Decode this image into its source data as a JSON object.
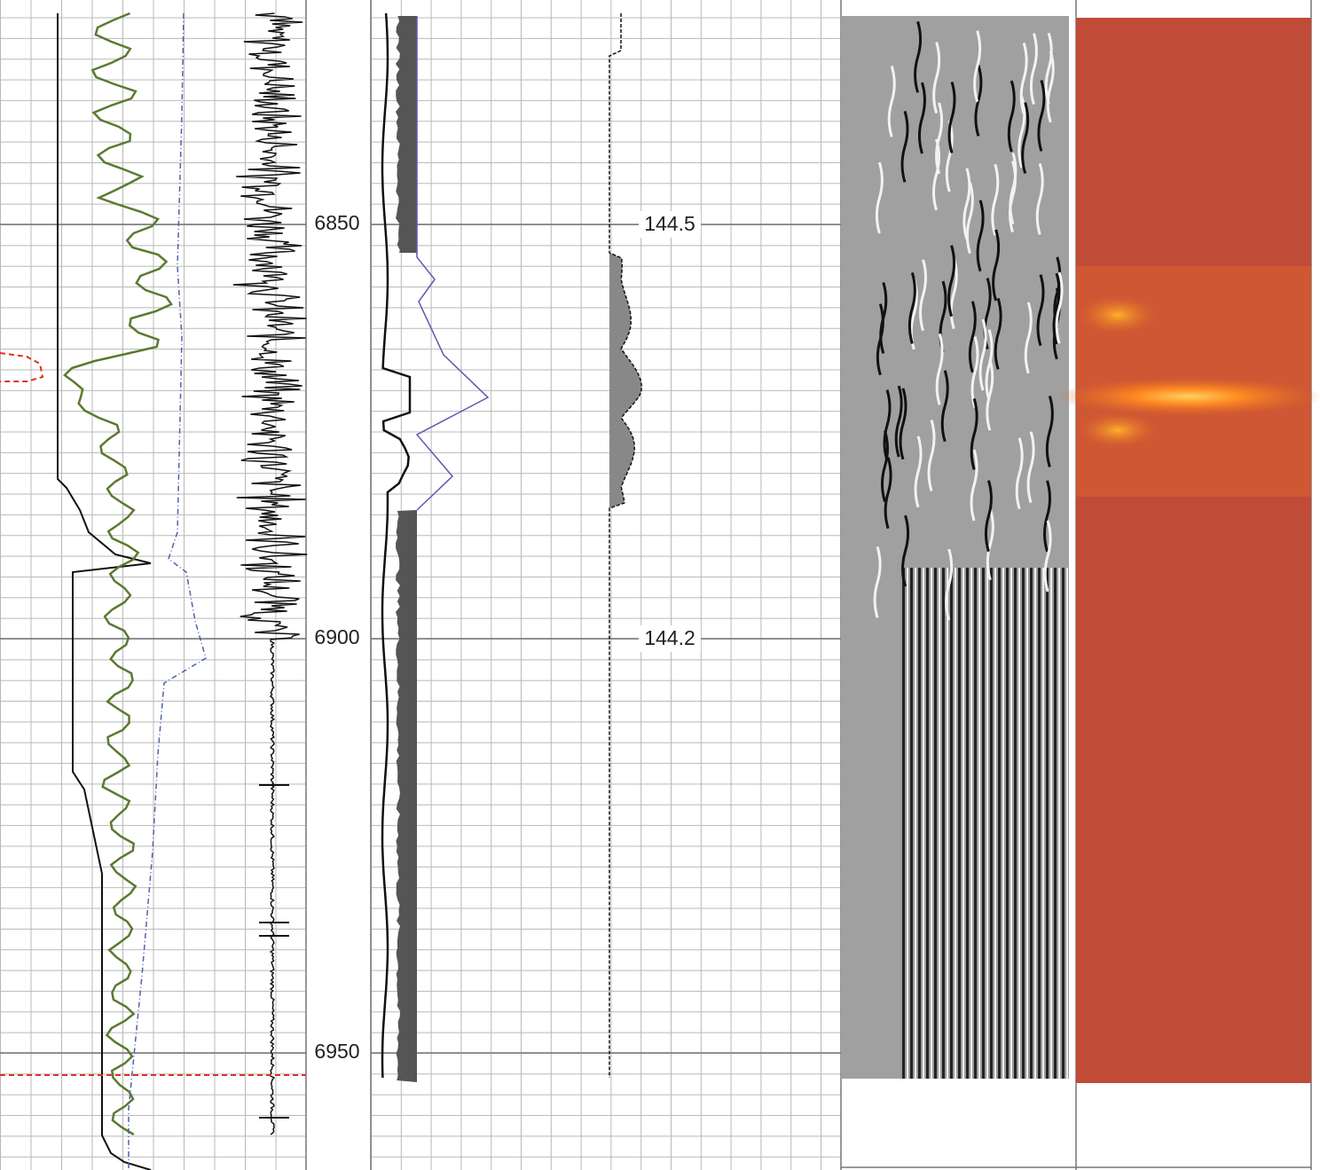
{
  "depth_labels": [
    "6850",
    "6900",
    "6950"
  ],
  "track2_labels": [
    "144.5",
    "144.2"
  ]
}
